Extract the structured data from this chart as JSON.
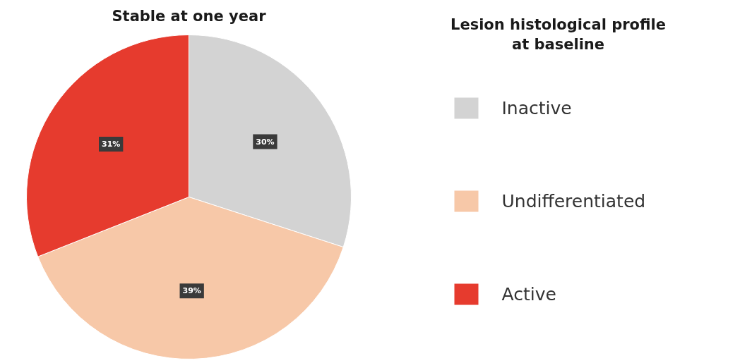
{
  "chart_data": {
    "type": "pie",
    "title": "Stable at one year",
    "legend_title": "Lesion histological profile\nat baseline",
    "categories": [
      "Inactive",
      "Undifferentiated",
      "Active"
    ],
    "values": [
      30,
      39,
      31
    ],
    "value_labels": [
      "30%",
      "39%",
      "31%"
    ],
    "colors": [
      "#d3d3d3",
      "#f7c8a8",
      "#e63b2e"
    ],
    "legend": "right"
  }
}
